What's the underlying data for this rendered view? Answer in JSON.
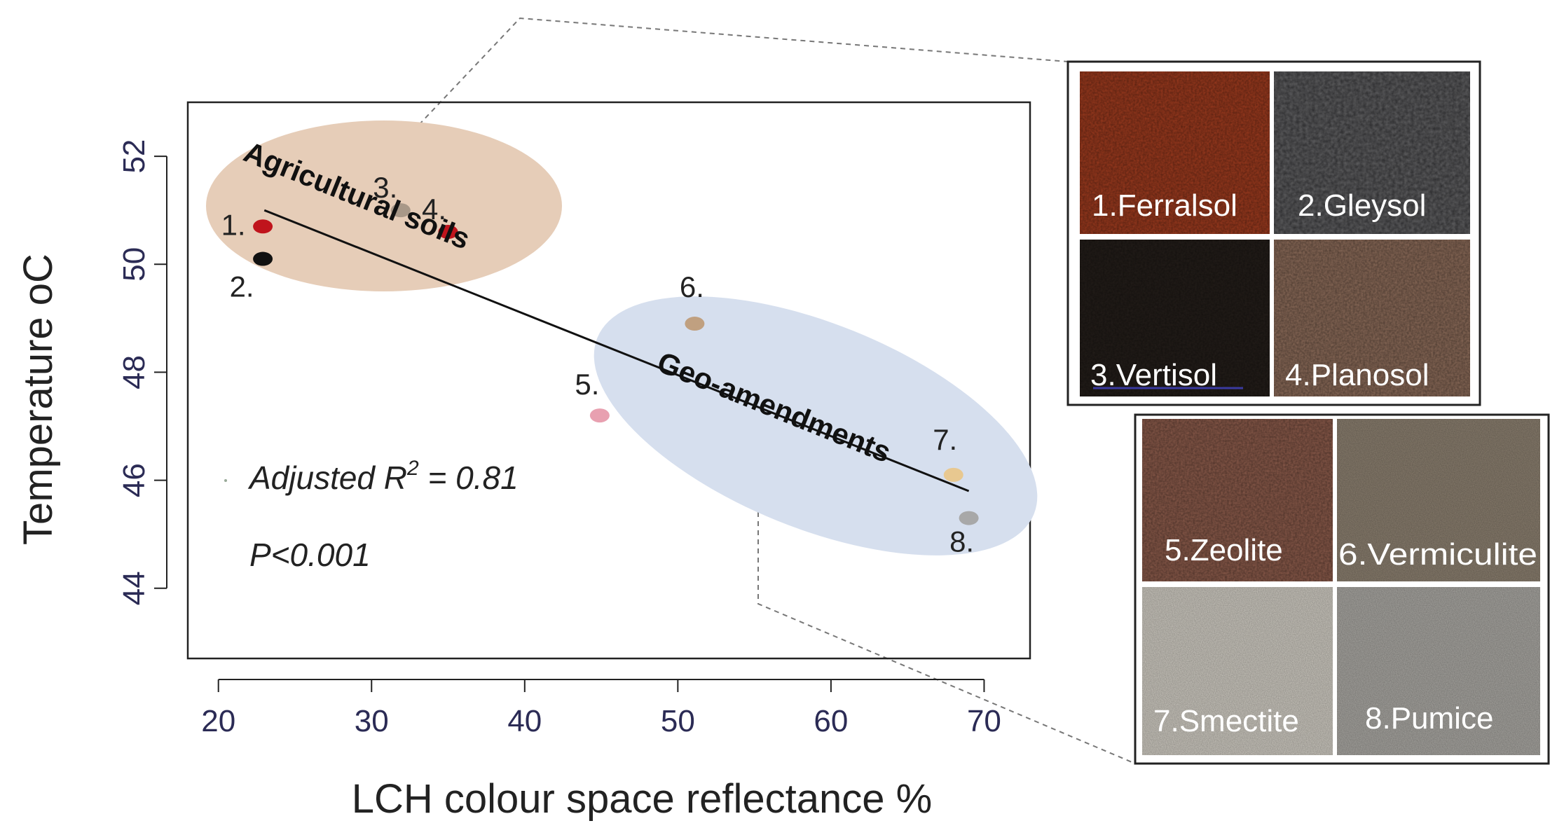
{
  "chart_data": {
    "type": "scatter",
    "xlabel": "LCH colour space reflectance %",
    "ylabel_main": "Temperature",
    "ylabel_unit": "oC",
    "xlim": [
      18,
      73
    ],
    "ylim": [
      42.7,
      53.0
    ],
    "xticks": [
      20,
      30,
      40,
      50,
      60,
      70
    ],
    "yticks": [
      44,
      46,
      48,
      50,
      52
    ],
    "grid": false,
    "points": [
      {
        "label": "1.",
        "x": 22.9,
        "y": 50.7,
        "color": "#c0141c"
      },
      {
        "label": "2.",
        "x": 22.9,
        "y": 50.1,
        "color": "#111111"
      },
      {
        "label": "3.",
        "x": 31.9,
        "y": 51.0,
        "color": "#a89888"
      },
      {
        "label": "4.",
        "x": 35.0,
        "y": 50.6,
        "color": "#c0141c"
      },
      {
        "label": "5.",
        "x": 44.9,
        "y": 47.2,
        "color": "#e8a0b0"
      },
      {
        "label": "6.",
        "x": 51.1,
        "y": 48.9,
        "color": "#c0a080"
      },
      {
        "label": "7.",
        "x": 68.0,
        "y": 46.1,
        "color": "#e8c890"
      },
      {
        "label": "8.",
        "x": 69.0,
        "y": 45.3,
        "color": "#a8a8a8"
      }
    ],
    "trend_line": {
      "x": [
        23,
        69
      ],
      "y": [
        51.0,
        45.8
      ],
      "color": "#111111"
    },
    "groups": [
      {
        "label": "Agricultural soils",
        "color": "#e6cdb8"
      },
      {
        "label": "Geo-amendments",
        "color": "#d6dfee"
      }
    ],
    "annotations": {
      "r2_prefix": "Adjusted R",
      "r2_sup": "2",
      "r2_suffix": " = 0.81",
      "p_value": "P<0.001"
    }
  },
  "samples": {
    "soils": [
      {
        "label": "1.Ferralsol",
        "color": "#9c3a1e"
      },
      {
        "label": "2.Gleysol",
        "color": "#2a2a2c"
      },
      {
        "label": "3.Vertisol",
        "color": "#231d19"
      },
      {
        "label": "4.Planosol",
        "color": "#8a6a58"
      }
    ],
    "amendments": [
      {
        "label": "5.Zeolite",
        "color": "#8a5a4a"
      },
      {
        "label": "6.Vermiculite",
        "color": "#8c8070"
      },
      {
        "label": "7.Smectite",
        "color": "#cfcbc2"
      },
      {
        "label": "8.Pumice",
        "color": "#aaa8a3"
      }
    ]
  }
}
